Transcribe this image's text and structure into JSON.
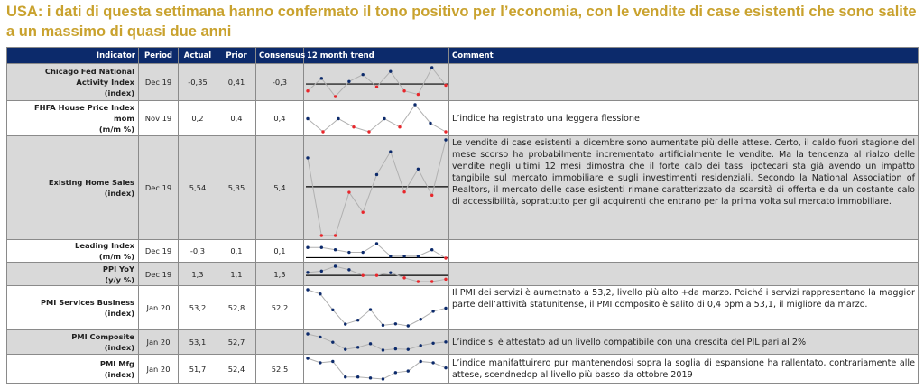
{
  "title": "USA: i dati di questa settimana hanno confermato il tono positivo per l’economia, con le vendite di case esistenti che sono salite a un massimo di quasi due anni",
  "headers": {
    "indicator": "Indicator",
    "period": "Period",
    "actual": "Actual",
    "prior": "Prior",
    "consensus": "Consensus",
    "trend": "12 month trend",
    "comment": "Comment"
  },
  "colors": {
    "header": "#0c2a6b",
    "title": "#c9a22e",
    "up": "#0c2a6b",
    "down": "#e8262b"
  },
  "rows": [
    {
      "name1": "Chicago Fed National",
      "name2": "Activity Index",
      "name3": "(index)",
      "period": "Dec 19",
      "actual": "-0,35",
      "prior": "0,41",
      "consensus": "-0,3",
      "comment": "",
      "trend": [
        -22,
        18,
        -40,
        8,
        30,
        -9,
        40,
        -22,
        -33,
        52,
        -4
      ],
      "ref": 0,
      "red": [
        0,
        2,
        5,
        7,
        8,
        10
      ]
    },
    {
      "name1": "FHFA House Price Index",
      "name2": "mom",
      "name3": "(m/m %)",
      "period": "Nov 19",
      "actual": "0,2",
      "prior": "0,4",
      "consensus": "0,4",
      "comment": "L’indice ha registrato una leggera flessione",
      "trend": [
        60,
        16,
        60,
        32,
        16,
        60,
        32,
        107,
        45,
        16
      ],
      "ref": null,
      "red": [
        1,
        3,
        4,
        6,
        9
      ]
    },
    {
      "name1": "",
      "name2": "Existing Home Sales",
      "name3": "(index)",
      "period": "Dec 19",
      "actual": "5,54",
      "prior": "5,35",
      "consensus": "5,4",
      "comment": "Le vendite di case esistenti a dicembre sono aumentate più delle attese. Certo, il caldo fuori stagione del mese scorso ha probabilmente incrementato artificialmente le vendite. Ma la tendenza al rialzo delle vendite negli ultimi 12 mesi dimostra che il forte calo dei tassi ipotecari sta già avendo un impatto tangibile sul mercato immobiliare e sugli investimenti residenziali. Secondo la National Association of Realtors, il mercato delle case esistenti rimane caratterizzato da scarsità di offerta e da un costante calo di accessibilità, soprattutto per gli acquirenti che entrano per la prima volta sul mercato immobiliare.",
      "trend": [
        332,
        68,
        68,
        215,
        147,
        275,
        353,
        216,
        294,
        205,
        393
      ],
      "ref": 234,
      "red": [
        1,
        2,
        3,
        4,
        7,
        9
      ]
    },
    {
      "name1": "",
      "name2": "Leading Index",
      "name3": "(m/m %)",
      "period": "Dec 19",
      "actual": "-0,3",
      "prior": "0,1",
      "consensus": "0,1",
      "comment": "",
      "trend": [
        52,
        52,
        43,
        33,
        33,
        67,
        18,
        18,
        18,
        43,
        10
      ],
      "ref": 12,
      "red": [
        10
      ]
    },
    {
      "name1": "",
      "name2": "PPI YoY",
      "name3": "(y/y %)",
      "period": "Dec 19",
      "actual": "1,3",
      "prior": "1,1",
      "consensus": "1,3",
      "comment": "",
      "trend": [
        19,
        24,
        42,
        29,
        8,
        8,
        18,
        -1,
        -15,
        -15,
        -6
      ],
      "ref": 8,
      "red": [
        4,
        5,
        7,
        8,
        9,
        10
      ]
    },
    {
      "name1": "",
      "name2": "PMI Services Business",
      "name3": "(index)",
      "period": "Jan 20",
      "actual": "53,2",
      "prior": "52,8",
      "consensus": "52,2",
      "comment": "Il PMI dei servizi è aumetnato a 53,2, livello più alto +da marzo. Poiché i servizi rappresentano la maggior parte dell’attività statunitense, il PMI composito è salito di 0,4 ppm a 53,1, il migliore da marzo.",
      "trend": [
        144,
        129,
        73,
        23,
        37,
        74,
        19,
        24,
        17,
        40,
        68,
        79
      ],
      "ref": null,
      "red": []
    },
    {
      "name1": "",
      "name2": "PMI Composite",
      "name3": "(index)",
      "period": "Jan 20",
      "actual": "53,1",
      "prior": "52,7",
      "consensus": "",
      "comment": "L’indice si è attestato ad un livello compatibile con una crescita del PIL pari al 2%",
      "trend": [
        77,
        65,
        45,
        17,
        25,
        39,
        14,
        19,
        17,
        32,
        41,
        46
      ],
      "ref": null,
      "red": []
    },
    {
      "name1": "",
      "name2": "PMI Mfg",
      "name3": "(index)",
      "period": "Jan 20",
      "actual": "51,7",
      "prior": "52,4",
      "consensus": "52,5",
      "comment": "L’indice manifattuirero pur mantenendosi sopra la soglia di espansione ha rallentato, contrariamente alle attese, scendnedop al livello più basso da ottobre 2019",
      "trend": [
        96,
        79,
        84,
        24,
        24,
        20,
        16,
        41,
        47,
        84,
        79,
        59
      ],
      "ref": null,
      "red": []
    }
  ]
}
